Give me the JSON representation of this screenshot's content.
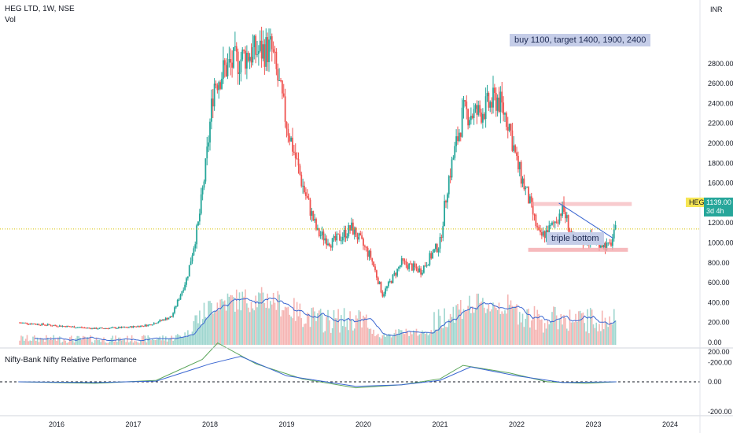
{
  "header": {
    "symbol_line": "HEG LTD, 1W, NSE",
    "volume_label": "Vol",
    "indicator_label": "Nifty-Bank Nifty Relative Performance",
    "currency": "INR"
  },
  "annotations": {
    "target_note": "buy 1100, target 1400, 1900, 2400",
    "pattern_note": "triple bottom"
  },
  "price_tag": {
    "symbol": "HEG",
    "price": "1139.00",
    "countdown": "3d 4h"
  },
  "colors": {
    "up": "#26a69a",
    "down": "#ef5350",
    "volume_ma": "#3a66d1",
    "relative_line": "#5aa55a",
    "relative_ma": "#3a66d1",
    "zone": "#f4a9ad",
    "trendline": "#3a66d1",
    "price_tag_bg": "#f7e654",
    "note_bg": "#c5cde8"
  },
  "chart_data": [
    {
      "type": "candlestick",
      "title": "HEG LTD, 1W, NSE",
      "ylabel": "INR",
      "x_ticks": [
        "2016",
        "2017",
        "2018",
        "2019",
        "2020",
        "2021",
        "2022",
        "2023",
        "2024"
      ],
      "y_ticks": [
        "2800.00",
        "2600.00",
        "2400.00",
        "2200.00",
        "2000.00",
        "1800.00",
        "1600.00",
        "1400.00",
        "1200.00",
        "1000.00",
        "800.00",
        "600.00",
        "400.00",
        "200.00",
        "0.00",
        "-200.00"
      ],
      "last_price": 1139,
      "price_path": [
        [
          "2015.5",
          200
        ],
        [
          "2015.9",
          175
        ],
        [
          "2016.5",
          140
        ],
        [
          "2016.9",
          150
        ],
        [
          "2017.2",
          175
        ],
        [
          "2017.5",
          260
        ],
        [
          "2017.7",
          650
        ],
        [
          "2017.85",
          1200
        ],
        [
          "2017.95",
          1800
        ],
        [
          "2018.05",
          2600
        ],
        [
          "2018.2",
          2750
        ],
        [
          "2018.5",
          2900
        ],
        [
          "2018.8",
          2950
        ],
        [
          "2019.0",
          2200
        ],
        [
          "2019.2",
          1600
        ],
        [
          "2019.4",
          1100
        ],
        [
          "2019.6",
          1000
        ],
        [
          "2019.85",
          1150
        ],
        [
          "2020.1",
          850
        ],
        [
          "2020.25",
          480
        ],
        [
          "2020.5",
          800
        ],
        [
          "2020.75",
          720
        ],
        [
          "2021.0",
          1000
        ],
        [
          "2021.1",
          1600
        ],
        [
          "2021.3",
          2300
        ],
        [
          "2021.5",
          2300
        ],
        [
          "2021.75",
          2450
        ],
        [
          "2021.9",
          2200
        ],
        [
          "2022.0",
          1800
        ],
        [
          "2022.15",
          1450
        ],
        [
          "2022.3",
          1050
        ],
        [
          "2022.45",
          1150
        ],
        [
          "2022.6",
          1350
        ],
        [
          "2022.75",
          1000
        ],
        [
          "2023.0",
          1050
        ],
        [
          "2023.2",
          950
        ],
        [
          "2023.3",
          1139
        ]
      ],
      "resistance_zone": [
        1390,
        1410
      ],
      "support_zone": [
        920,
        950
      ],
      "trendline": [
        [
          "2022.55",
          1400
        ],
        [
          "2023.25",
          1050
        ]
      ]
    },
    {
      "type": "bar",
      "title": "Vol",
      "note": "volume with moving average"
    },
    {
      "type": "line",
      "title": "Nifty-Bank Nifty Relative Performance",
      "y_ticks": [
        "200.00",
        "0.00",
        "-200.00"
      ],
      "series": [
        {
          "points": [
            [
              "2015.5",
              0
            ],
            [
              "2016.5",
              -10
            ],
            [
              "2017.3",
              10
            ],
            [
              "2017.9",
              150
            ],
            [
              "2018.1",
              260
            ],
            [
              "2018.6",
              120
            ],
            [
              "2019.2",
              20
            ],
            [
              "2019.9",
              -40
            ],
            [
              "2020.5",
              -20
            ],
            [
              "2021.0",
              20
            ],
            [
              "2021.3",
              110
            ],
            [
              "2021.9",
              60
            ],
            [
              "2022.4",
              0
            ],
            [
              "2022.9",
              -10
            ],
            [
              "2023.3",
              0
            ]
          ]
        },
        {
          "points": [
            [
              "2015.5",
              0
            ],
            [
              "2016.5",
              -5
            ],
            [
              "2017.3",
              5
            ],
            [
              "2018.0",
              120
            ],
            [
              "2018.4",
              170
            ],
            [
              "2019.0",
              40
            ],
            [
              "2019.9",
              -30
            ],
            [
              "2020.5",
              -20
            ],
            [
              "2021.0",
              10
            ],
            [
              "2021.4",
              100
            ],
            [
              "2022.0",
              40
            ],
            [
              "2022.6",
              -5
            ],
            [
              "2023.3",
              0
            ]
          ]
        }
      ]
    }
  ]
}
